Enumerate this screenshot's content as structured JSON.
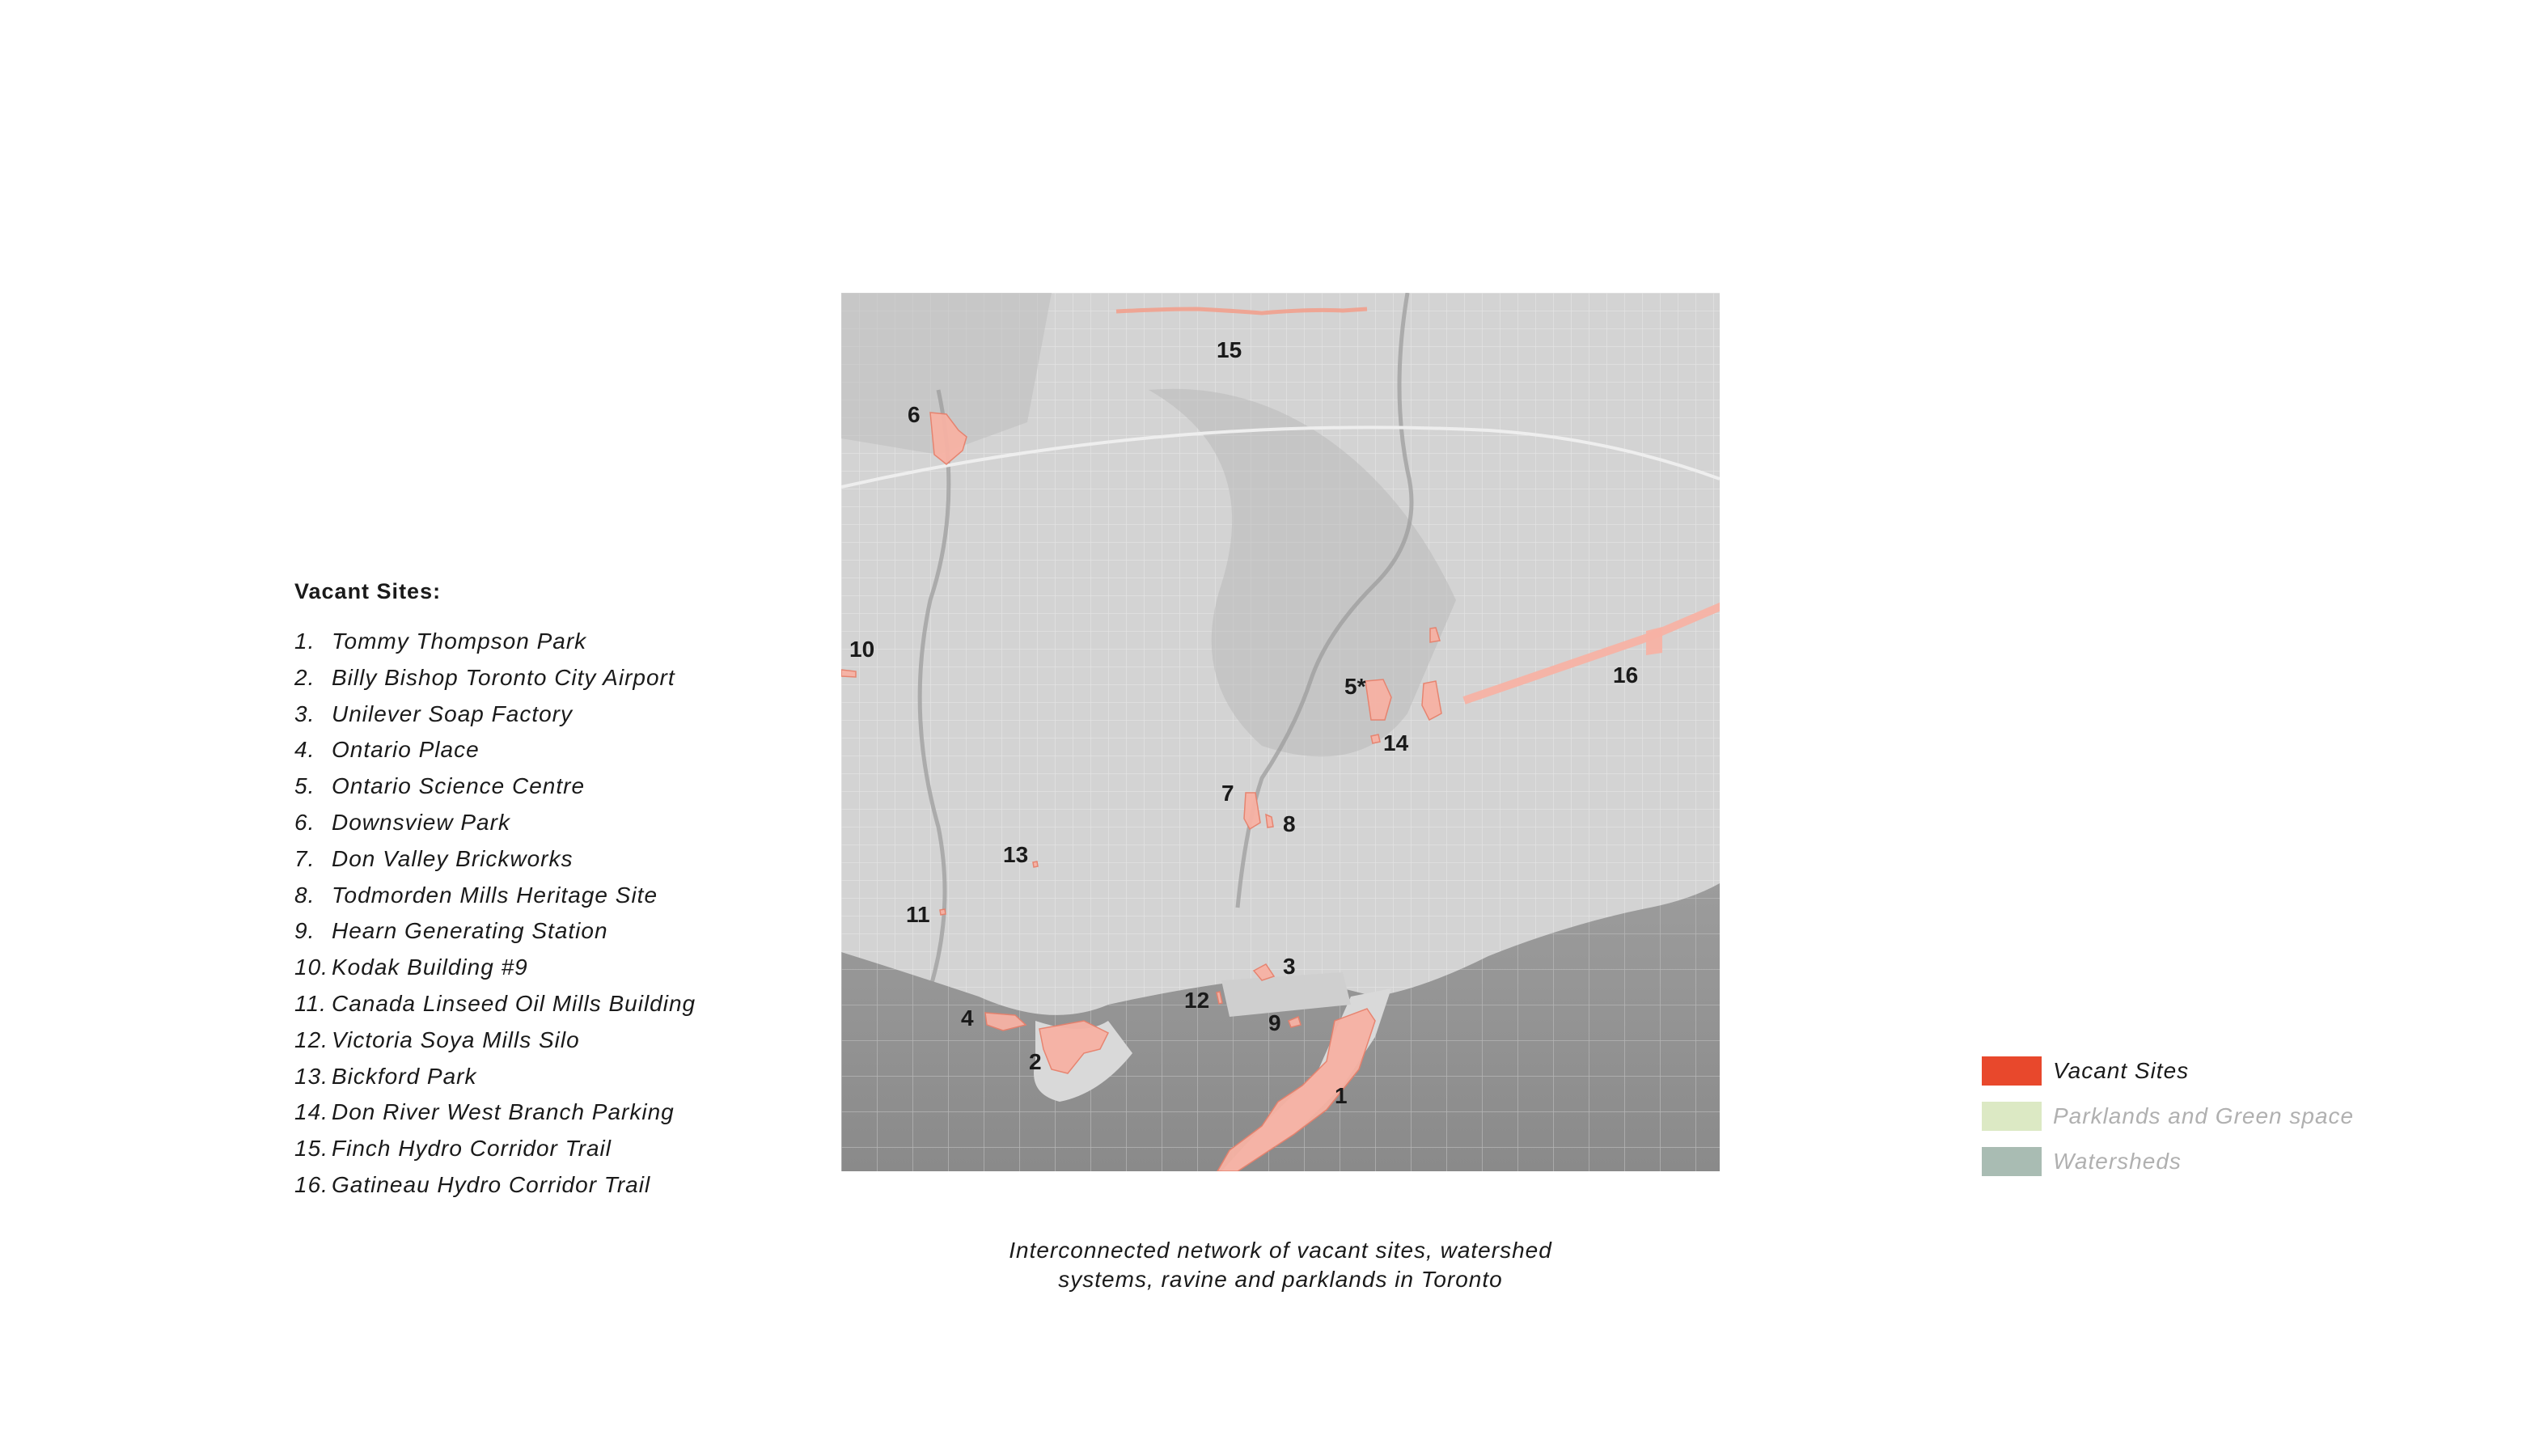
{
  "legend_list": {
    "title": "Vacant Sites:",
    "items": [
      {
        "num": "1.",
        "label": "Tommy Thompson Park"
      },
      {
        "num": "2.",
        "label": "Billy Bishop Toronto City Airport"
      },
      {
        "num": "3.",
        "label": "Unilever Soap Factory"
      },
      {
        "num": "4.",
        "label": "Ontario Place"
      },
      {
        "num": "5.",
        "label": "Ontario Science Centre"
      },
      {
        "num": "6.",
        "label": "Downsview Park"
      },
      {
        "num": "7.",
        "label": "Don Valley Brickworks"
      },
      {
        "num": "8.",
        "label": "Todmorden Mills Heritage Site"
      },
      {
        "num": "9.",
        "label": "Hearn Generating Station"
      },
      {
        "num": "10.",
        "label": "Kodak Building #9"
      },
      {
        "num": "11.",
        "label": "Canada Linseed Oil Mills Building"
      },
      {
        "num": "12.",
        "label": "Victoria Soya Mills Silo"
      },
      {
        "num": "13.",
        "label": "Bickford Park"
      },
      {
        "num": "14.",
        "label": "Don River West Branch Parking"
      },
      {
        "num": "15.",
        "label": "Finch Hydro Corridor Trail"
      },
      {
        "num": "16.",
        "label": "Gatineau Hydro Corridor Trail"
      }
    ]
  },
  "map": {
    "labels": {
      "s1": "1",
      "s2": "2",
      "s3": "3",
      "s4": "4",
      "s5": "5*",
      "s6": "6",
      "s7": "7",
      "s8": "8",
      "s9": "9",
      "s10": "10",
      "s11": "11",
      "s12": "12",
      "s13": "13",
      "s14": "14",
      "s15": "15",
      "s16": "16"
    }
  },
  "caption": {
    "line1": "Interconnected network of vacant sites, watershed",
    "line2": "systems, ravine and parklands in Toronto"
  },
  "key_legend": {
    "items": [
      {
        "label": "Vacant Sites",
        "color": "#e8482c",
        "text_color": "#1a1a1a"
      },
      {
        "label": "Parklands and Green space",
        "color": "#dce9c4",
        "text_color": "#b0b0b0"
      },
      {
        "label": "Watersheds",
        "color": "#a9bcb3",
        "text_color": "#b0b0b0"
      }
    ]
  }
}
